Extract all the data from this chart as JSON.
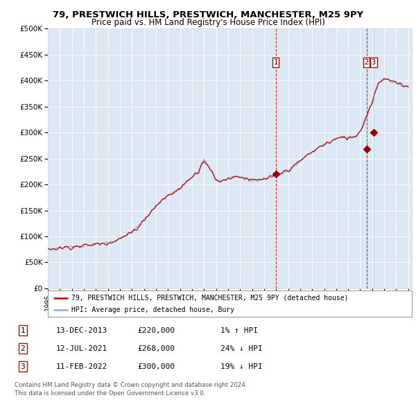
{
  "title1": "79, PRESTWICH HILLS, PRESTWICH, MANCHESTER, M25 9PY",
  "title2": "Price paid vs. HM Land Registry's House Price Index (HPI)",
  "bg_color": "#dce9f5",
  "red_line_color": "#cc0000",
  "blue_line_color": "#88aadd",
  "vline_color_red": "#cc0000",
  "vline_color_gray": "#aaaaaa",
  "marker_color": "#990000",
  "transaction1_date": 2013.96,
  "transaction1_price": 220000,
  "transaction2_date": 2021.53,
  "transaction2_price": 268000,
  "transaction3_date": 2022.12,
  "transaction3_price": 300000,
  "legend1": "79, PRESTWICH HILLS, PRESTWICH, MANCHESTER, M25 9PY (detached house)",
  "legend2": "HPI: Average price, detached house, Bury",
  "footer1": "Contains HM Land Registry data © Crown copyright and database right 2024.",
  "footer2": "This data is licensed under the Open Government Licence v3.0.",
  "table_row1": [
    "1",
    "13-DEC-2013",
    "£220,000",
    "1% ↑ HPI"
  ],
  "table_row2": [
    "2",
    "12-JUL-2021",
    "£268,000",
    "24% ↓ HPI"
  ],
  "table_row3": [
    "3",
    "11-FEB-2022",
    "£300,000",
    "19% ↓ HPI"
  ],
  "ylim_max": 500000,
  "xlim_start": 1995.0,
  "xlim_end": 2025.3,
  "yticks": [
    0,
    50000,
    100000,
    150000,
    200000,
    250000,
    300000,
    350000,
    400000,
    450000,
    500000
  ],
  "ytick_labels": [
    "£0",
    "£50K",
    "£100K",
    "£150K",
    "£200K",
    "£250K",
    "£300K",
    "£350K",
    "£400K",
    "£450K",
    "£500K"
  ],
  "xticks": [
    1995,
    1996,
    1997,
    1998,
    1999,
    2000,
    2001,
    2002,
    2003,
    2004,
    2005,
    2006,
    2007,
    2008,
    2009,
    2010,
    2011,
    2012,
    2013,
    2014,
    2015,
    2016,
    2017,
    2018,
    2019,
    2020,
    2021,
    2022,
    2023,
    2024,
    2025
  ],
  "hpi_anchors_x": [
    1995.0,
    1996.0,
    1997.0,
    1998.0,
    1999.0,
    2000.0,
    2001.0,
    2002.0,
    2002.5,
    2003.0,
    2003.5,
    2004.0,
    2004.5,
    2005.0,
    2005.5,
    2006.0,
    2006.5,
    2007.0,
    2007.5,
    2008.0,
    2008.5,
    2009.0,
    2009.5,
    2010.0,
    2010.5,
    2011.0,
    2011.5,
    2012.0,
    2012.5,
    2013.0,
    2013.5,
    2014.0,
    2014.5,
    2015.0,
    2015.5,
    2016.0,
    2016.5,
    2017.0,
    2017.5,
    2018.0,
    2018.5,
    2019.0,
    2019.5,
    2020.0,
    2020.5,
    2021.0,
    2021.5,
    2022.0,
    2022.5,
    2023.0,
    2023.5,
    2024.0,
    2024.5,
    2025.0
  ],
  "hpi_anchors_y": [
    75000,
    78000,
    80000,
    82000,
    85000,
    88000,
    95000,
    108000,
    118000,
    132000,
    145000,
    158000,
    170000,
    178000,
    185000,
    192000,
    205000,
    215000,
    225000,
    248000,
    230000,
    208000,
    207000,
    212000,
    215000,
    215000,
    212000,
    207000,
    208000,
    210000,
    213000,
    218000,
    222000,
    228000,
    235000,
    245000,
    255000,
    262000,
    270000,
    278000,
    282000,
    288000,
    290000,
    290000,
    292000,
    302000,
    330000,
    360000,
    395000,
    405000,
    400000,
    395000,
    390000,
    390000
  ]
}
